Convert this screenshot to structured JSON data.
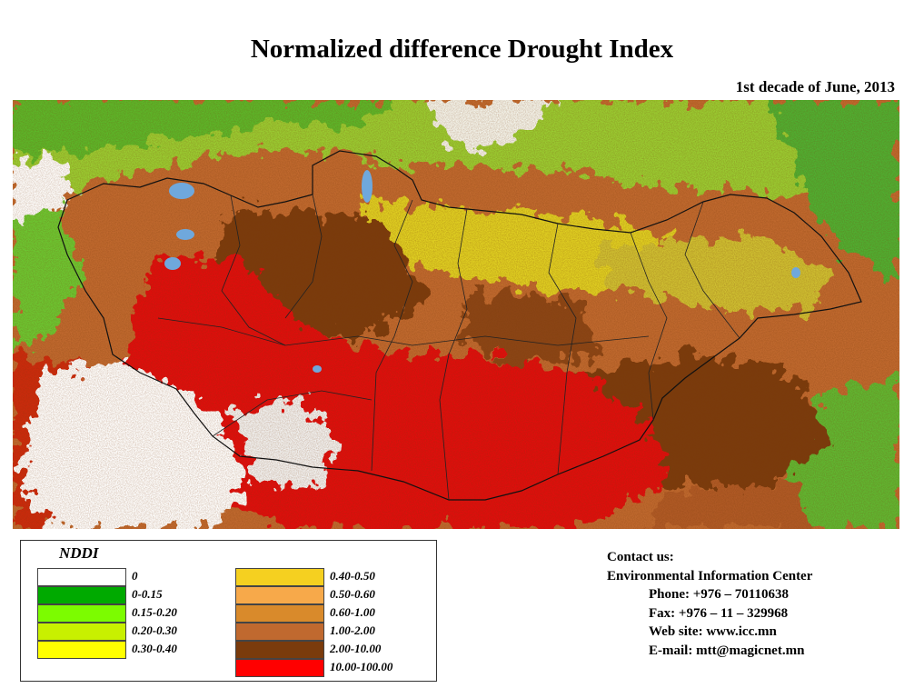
{
  "title": "Normalized difference Drought Index",
  "subtitle": "1st decade of June, 2013",
  "legend": {
    "title": "NDDI",
    "items": [
      {
        "label": "0",
        "color": "#ffffff"
      },
      {
        "label": "0-0.15",
        "color": "#00aa00"
      },
      {
        "label": "0.15-0.20",
        "color": "#7cfc00"
      },
      {
        "label": "0.20-0.30",
        "color": "#c8f000"
      },
      {
        "label": "0.30-0.40",
        "color": "#ffff00"
      },
      {
        "label": "0.40-0.50",
        "color": "#f5d020"
      },
      {
        "label": "0.50-0.60",
        "color": "#f7a94a"
      },
      {
        "label": "0.60-1.00",
        "color": "#d98a2b"
      },
      {
        "label": "1.00-2.00",
        "color": "#c0692f"
      },
      {
        "label": "2.00-10.00",
        "color": "#7a3b0c"
      },
      {
        "label": "10.00-100.00",
        "color": "#ff0000"
      }
    ]
  },
  "contact": {
    "heading": "Contact us:",
    "org": "Environmental Information Center",
    "phone": "Phone: +976 – 70110638",
    "fax": "Fax: +976 – 11 – 329968",
    "web": "Web site: www.icc.mn",
    "email": "E-mail: mtt@magicnet.mn"
  }
}
